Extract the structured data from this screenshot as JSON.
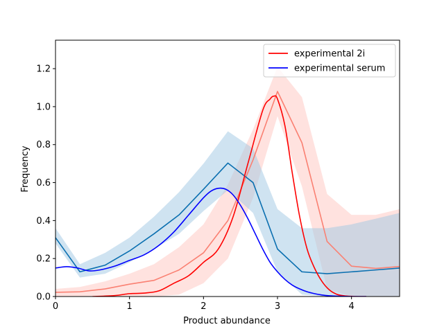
{
  "chart_data": {
    "type": "line",
    "title": "",
    "xlabel": "Product abundance",
    "ylabel": "Frequency",
    "xlim": [
      0,
      4.65
    ],
    "ylim": [
      0,
      1.35
    ],
    "xticks": [
      0,
      1,
      2,
      3,
      4
    ],
    "yticks": [
      0.0,
      0.2,
      0.4,
      0.6,
      0.8,
      1.0,
      1.2
    ],
    "xtick_labels": [
      "0",
      "1",
      "2",
      "3",
      "4"
    ],
    "ytick_labels": [
      "0.0",
      "0.2",
      "0.4",
      "0.6",
      "0.8",
      "1.0",
      "1.2"
    ],
    "grid": false,
    "legend_position": "top-right",
    "series": [
      {
        "name": "experimental 2i",
        "color": "#ff0000",
        "style": "smooth",
        "x": [
          0.5,
          0.8,
          1.0,
          1.2,
          1.4,
          1.6,
          1.8,
          2.0,
          2.2,
          2.4,
          2.6,
          2.8,
          2.9,
          2.95,
          3.0,
          3.1,
          3.2,
          3.3,
          3.4,
          3.5,
          3.6,
          3.7,
          3.8,
          3.9,
          4.0,
          4.1,
          4.2
        ],
        "values": [
          0.0,
          0.005,
          0.015,
          0.018,
          0.03,
          0.07,
          0.11,
          0.18,
          0.25,
          0.42,
          0.7,
          0.98,
          1.04,
          1.055,
          1.04,
          0.9,
          0.65,
          0.42,
          0.25,
          0.15,
          0.08,
          0.035,
          0.012,
          0.004,
          0.001,
          0.0,
          0.0
        ]
      },
      {
        "name": "experimental serum",
        "color": "#0000ff",
        "style": "smooth",
        "x": [
          0.0,
          0.15,
          0.3,
          0.45,
          0.6,
          0.8,
          1.0,
          1.2,
          1.4,
          1.6,
          1.8,
          2.0,
          2.1,
          2.2,
          2.3,
          2.4,
          2.5,
          2.6,
          2.7,
          2.8,
          2.9,
          3.0,
          3.1,
          3.2,
          3.3,
          3.4,
          3.5,
          3.6,
          3.7,
          3.8,
          4.0,
          4.2
        ],
        "values": [
          0.15,
          0.157,
          0.15,
          0.135,
          0.14,
          0.16,
          0.19,
          0.22,
          0.27,
          0.34,
          0.43,
          0.52,
          0.555,
          0.57,
          0.565,
          0.535,
          0.48,
          0.41,
          0.33,
          0.25,
          0.18,
          0.13,
          0.09,
          0.06,
          0.04,
          0.025,
          0.015,
          0.008,
          0.004,
          0.002,
          0.0,
          0.0
        ]
      },
      {
        "name": "",
        "color": "#fa8072",
        "style": "linear",
        "band_color": "#ffc5c0",
        "x": [
          0.0,
          0.33,
          0.67,
          1.0,
          1.33,
          1.67,
          2.0,
          2.33,
          2.67,
          3.0,
          3.33,
          3.67,
          4.0,
          4.33,
          4.65
        ],
        "values": [
          0.022,
          0.025,
          0.04,
          0.065,
          0.085,
          0.14,
          0.23,
          0.4,
          0.72,
          1.08,
          0.81,
          0.29,
          0.16,
          0.148,
          0.158
        ],
        "lower": [
          0.0,
          0.0,
          0.0,
          0.0,
          0.0,
          0.01,
          0.07,
          0.2,
          0.52,
          0.95,
          0.58,
          0.04,
          0.0,
          0.0,
          0.0
        ],
        "upper": [
          0.04,
          0.05,
          0.08,
          0.12,
          0.17,
          0.26,
          0.38,
          0.59,
          0.88,
          1.21,
          1.05,
          0.54,
          0.43,
          0.43,
          0.46
        ]
      },
      {
        "name": "",
        "color": "#0a6fb0",
        "style": "linear",
        "band_color": "#9fc7e4",
        "x": [
          0.0,
          0.33,
          0.67,
          1.0,
          1.33,
          1.67,
          2.0,
          2.33,
          2.67,
          3.0,
          3.33,
          3.67,
          4.0,
          4.33,
          4.65
        ],
        "values": [
          0.31,
          0.13,
          0.165,
          0.24,
          0.33,
          0.43,
          0.565,
          0.703,
          0.6,
          0.25,
          0.13,
          0.12,
          0.13,
          0.14,
          0.15
        ],
        "lower": [
          0.28,
          0.1,
          0.12,
          0.18,
          0.25,
          0.33,
          0.45,
          0.56,
          0.44,
          0.13,
          0.01,
          0.0,
          0.0,
          0.0,
          0.0
        ],
        "upper": [
          0.36,
          0.17,
          0.23,
          0.31,
          0.42,
          0.55,
          0.7,
          0.87,
          0.78,
          0.46,
          0.36,
          0.36,
          0.38,
          0.41,
          0.44
        ]
      }
    ],
    "legend_entries": [
      "experimental 2i",
      "experimental serum"
    ]
  }
}
